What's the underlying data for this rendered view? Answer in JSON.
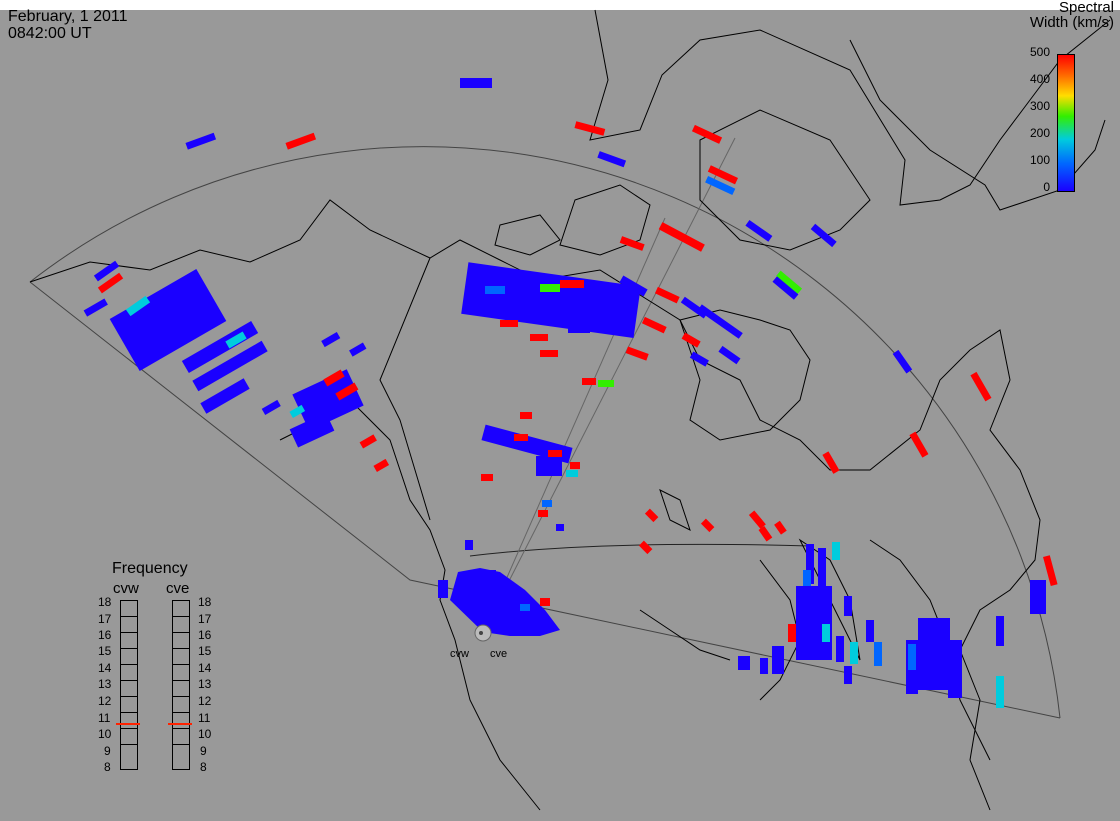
{
  "timestamp": {
    "date": "February, 1 2011",
    "time": "0842:00 UT"
  },
  "legend": {
    "title_line1": "Spectral",
    "title_line2": "Width (km/s)",
    "ticks": [
      "500",
      "400",
      "300",
      "200",
      "100",
      "0"
    ],
    "colors": {
      "high": "#ff0000",
      "mid_high": "#ffdd00",
      "mid": "#33ee00",
      "low_mid": "#00ccdd",
      "low": "#0066ff",
      "zero": "#1a00ff"
    },
    "range": [
      0,
      500
    ]
  },
  "frequency_panel": {
    "title": "Frequency",
    "radars": [
      "cvw",
      "cve"
    ],
    "levels": [
      "18",
      "17",
      "16",
      "15",
      "14",
      "13",
      "12",
      "11",
      "10",
      "9",
      "8"
    ],
    "selected": {
      "cvw": 11,
      "cve": 11
    }
  },
  "sites": {
    "west": "cvw",
    "east": "cve"
  },
  "colors": {
    "background": "#999999",
    "coastline": "#000000"
  }
}
